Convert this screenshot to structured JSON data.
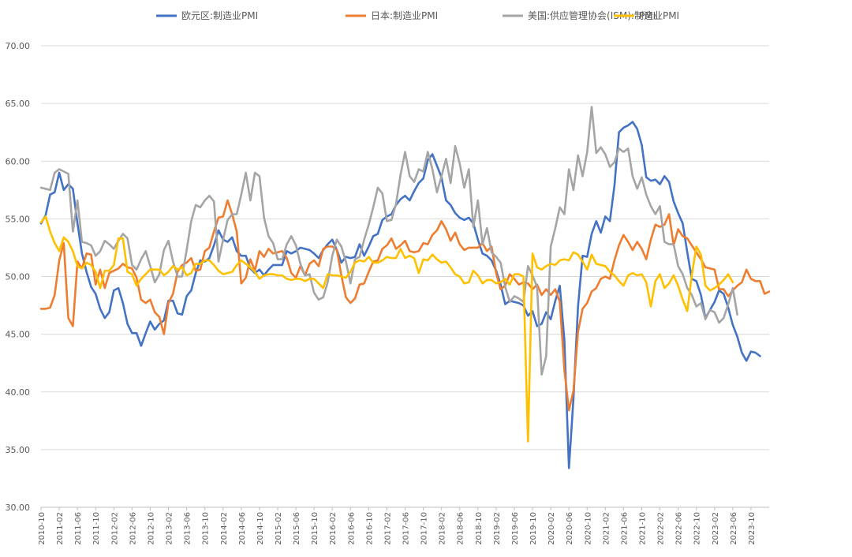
{
  "chart_data": {
    "type": "line",
    "title": "",
    "xlabel": "",
    "ylabel": "",
    "ylim": [
      30,
      70
    ],
    "yticks": [
      "30.00",
      "35.00",
      "40.00",
      "45.00",
      "50.00",
      "55.00",
      "60.00",
      "65.00",
      "70.00"
    ],
    "x_start": "2010-10",
    "x_end": "2023-10",
    "legend_position": "top",
    "grid": true,
    "xtick_labels": [
      "2010-10",
      "2011-02",
      "2011-06",
      "2011-10",
      "2012-02",
      "2012-06",
      "2012-10",
      "2013-02",
      "2013-06",
      "2013-10",
      "2014-02",
      "2014-06",
      "2014-10",
      "2015-02",
      "2015-06",
      "2015-10",
      "2016-02",
      "2016-06",
      "2016-10",
      "2017-02",
      "2017-06",
      "2017-10",
      "2018-02",
      "2018-06",
      "2018-10",
      "2019-02",
      "2019-06",
      "2019-10",
      "2020-02",
      "2020-06",
      "2020-10",
      "2021-02",
      "2021-06",
      "2021-10",
      "2022-02",
      "2022-06",
      "2022-10",
      "2023-02",
      "2023-06",
      "2023-10"
    ],
    "series": [
      {
        "name": "欧元区:制造业PMI",
        "color": "#4472c4",
        "values": [
          54.6,
          55.3,
          57.1,
          57.3,
          59.0,
          57.5,
          58.0,
          57.6,
          54.6,
          52.0,
          50.4,
          49.1,
          48.5,
          47.2,
          46.4,
          46.9,
          48.8,
          49.0,
          47.7,
          45.9,
          45.1,
          45.1,
          44.0,
          45.1,
          46.1,
          45.4,
          45.9,
          46.2,
          47.9,
          47.9,
          46.8,
          46.7,
          48.3,
          48.8,
          50.3,
          51.4,
          51.3,
          51.6,
          52.7,
          54.0,
          53.2,
          53.0,
          53.4,
          52.2,
          51.8,
          51.8,
          50.7,
          50.3,
          50.6,
          50.1,
          50.6,
          51.0,
          51.0,
          51.0,
          52.2,
          52.0,
          52.2,
          52.5,
          52.4,
          52.3,
          52.0,
          51.6,
          52.3,
          52.8,
          53.2,
          52.3,
          51.2,
          51.7,
          51.6,
          51.7,
          52.8,
          51.8,
          52.6,
          53.5,
          53.7,
          54.9,
          55.2,
          55.4,
          56.2,
          56.7,
          57.0,
          56.6,
          57.4,
          58.1,
          58.5,
          60.1,
          60.6,
          59.6,
          58.6,
          56.6,
          56.2,
          55.5,
          55.1,
          54.9,
          55.1,
          54.6,
          53.2,
          52.0,
          51.8,
          51.4,
          50.5,
          49.3,
          47.6,
          47.9,
          47.8,
          47.7,
          47.5,
          46.6,
          47.0,
          45.7,
          45.9,
          46.9,
          46.3,
          47.9,
          49.2,
          44.5,
          33.4,
          39.4,
          47.4,
          51.8,
          51.7,
          53.7,
          54.8,
          53.8,
          55.2,
          54.8,
          57.9,
          62.5,
          62.9,
          63.1,
          63.4,
          62.8,
          61.4,
          58.6,
          58.3,
          58.4,
          58.0,
          58.7,
          58.2,
          56.5,
          55.5,
          54.6,
          52.1,
          49.8,
          49.6,
          48.4,
          46.4,
          47.1,
          47.8,
          48.8,
          48.5,
          47.3,
          45.8,
          44.8,
          43.4,
          42.7,
          43.5,
          43.4,
          43.1
        ]
      },
      {
        "name": "日本:制造业PMI",
        "color": "#ed7d31",
        "values": [
          47.2,
          47.2,
          47.3,
          48.4,
          51.4,
          52.9,
          46.4,
          45.7,
          51.3,
          50.7,
          52.0,
          51.9,
          49.3,
          50.6,
          49.0,
          50.3,
          50.5,
          50.7,
          51.1,
          50.8,
          50.7,
          49.9,
          48.0,
          47.7,
          48.0,
          46.9,
          46.5,
          45.0,
          47.7,
          48.5,
          50.4,
          51.0,
          51.2,
          51.6,
          50.5,
          50.6,
          52.2,
          52.5,
          53.9,
          55.1,
          55.2,
          56.6,
          55.4,
          53.9,
          49.4,
          49.9,
          51.5,
          50.5,
          52.2,
          51.7,
          52.4,
          52.0,
          52.1,
          52.2,
          51.6,
          50.3,
          49.9,
          50.9,
          50.1,
          51.1,
          51.4,
          50.9,
          52.4,
          52.6,
          52.6,
          52.3,
          50.1,
          48.2,
          47.7,
          48.1,
          49.3,
          49.4,
          50.4,
          51.3,
          51.4,
          52.4,
          52.7,
          53.3,
          52.4,
          52.7,
          53.1,
          52.2,
          52.1,
          52.2,
          52.9,
          52.8,
          53.6,
          54.0,
          54.8,
          54.1,
          53.1,
          53.8,
          52.8,
          52.3,
          52.5,
          52.5,
          52.5,
          52.9,
          52.2,
          52.6,
          50.3,
          48.9,
          49.2,
          50.2,
          49.8,
          49.3,
          49.5,
          49.4,
          48.9,
          49.3,
          48.4,
          48.9,
          48.4,
          48.9,
          47.8,
          41.9,
          38.4,
          40.1,
          45.2,
          47.2,
          47.7,
          48.7,
          49.0,
          49.8,
          50.0,
          49.8,
          51.4,
          52.7,
          53.6,
          53.0,
          52.3,
          53.0,
          52.4,
          51.5,
          53.2,
          54.5,
          54.3,
          54.5,
          55.4,
          52.7,
          54.1,
          53.5,
          53.3,
          52.7,
          52.1,
          51.5,
          50.8,
          50.7,
          50.6,
          48.9,
          48.9,
          48.3,
          48.8,
          49.2,
          49.5,
          50.6,
          49.8,
          49.6,
          49.6,
          48.5,
          48.7
        ]
      },
      {
        "name": "美国:供应管理协会(ISM):制造业PMI",
        "color": "#a5a5a5",
        "values": [
          57.7,
          57.6,
          57.5,
          59.0,
          59.3,
          59.1,
          58.9,
          53.9,
          56.6,
          53.0,
          52.9,
          52.7,
          51.8,
          52.2,
          53.1,
          52.8,
          52.4,
          53.1,
          53.7,
          53.3,
          51.0,
          50.6,
          51.5,
          52.2,
          50.9,
          49.5,
          50.2,
          52.3,
          53.1,
          51.3,
          50.0,
          50.0,
          52.3,
          54.8,
          56.2,
          56.0,
          56.6,
          57.0,
          56.5,
          51.3,
          53.2,
          54.9,
          55.4,
          55.4,
          57.1,
          59.0,
          56.6,
          59.0,
          58.7,
          55.1,
          53.5,
          52.9,
          51.5,
          51.5,
          52.8,
          53.5,
          52.7,
          51.1,
          50.1,
          50.2,
          48.6,
          48.0,
          48.2,
          49.5,
          51.8,
          53.2,
          52.6,
          51.3,
          49.4,
          51.5,
          51.7,
          53.2,
          54.5,
          56.0,
          57.7,
          57.2,
          54.8,
          54.9,
          56.3,
          58.8,
          60.8,
          58.7,
          58.2,
          59.3,
          59.1,
          60.8,
          59.3,
          57.3,
          58.7,
          60.2,
          58.1,
          61.3,
          59.8,
          57.7,
          59.3,
          54.3,
          56.6,
          52.8,
          54.2,
          52.1,
          51.7,
          51.2,
          49.1,
          47.8,
          48.3,
          48.1,
          47.8,
          50.9,
          50.1,
          49.1,
          41.5,
          43.1,
          52.6,
          54.2,
          56.0,
          55.4,
          59.3,
          57.5,
          60.5,
          58.7,
          60.8,
          64.7,
          60.7,
          61.2,
          60.6,
          59.5,
          59.9,
          61.1,
          60.8,
          61.1,
          58.7,
          57.6,
          58.6,
          57.1,
          56.1,
          55.4,
          56.1,
          53.0,
          52.8,
          52.8,
          50.9,
          50.2,
          49.0,
          48.4,
          47.4,
          47.7,
          46.3,
          47.1,
          46.9,
          46.0,
          46.4,
          47.6,
          49.0,
          46.7
        ]
      },
      {
        "name": "PMI",
        "color": "#ffc000",
        "values": [
          54.7,
          55.2,
          53.9,
          52.9,
          52.2,
          53.4,
          53.0,
          52.2,
          50.9,
          50.7,
          51.2,
          51.0,
          50.4,
          49.0,
          50.5,
          50.5,
          51.0,
          53.3,
          53.3,
          50.4,
          50.2,
          49.2,
          49.8,
          50.2,
          50.6,
          50.6,
          50.6,
          50.1,
          50.4,
          50.9,
          50.6,
          50.8,
          50.1,
          50.3,
          51.1,
          51.1,
          51.4,
          51.4,
          51.0,
          50.5,
          50.2,
          50.3,
          50.4,
          51.0,
          51.4,
          51.1,
          50.8,
          50.4,
          49.8,
          50.1,
          50.2,
          50.2,
          50.1,
          50.1,
          49.8,
          49.7,
          49.8,
          49.8,
          49.6,
          49.8,
          49.8,
          49.4,
          49.0,
          50.2,
          50.1,
          50.1,
          50.0,
          49.9,
          50.4,
          51.2,
          51.4,
          51.3,
          51.7,
          51.2,
          51.2,
          51.4,
          51.7,
          51.6,
          51.6,
          52.4,
          51.6,
          51.8,
          51.6,
          50.3,
          51.5,
          51.4,
          51.9,
          51.5,
          51.2,
          51.3,
          50.8,
          50.2,
          50.0,
          49.4,
          49.5,
          50.5,
          50.1,
          49.4,
          49.7,
          49.7,
          49.4,
          49.5,
          49.8,
          49.3,
          50.2,
          50.2,
          50.0,
          35.7,
          52.0,
          50.8,
          50.6,
          50.9,
          51.1,
          51.0,
          51.4,
          51.5,
          51.4,
          52.1,
          51.9,
          51.3,
          50.6,
          51.9,
          51.1,
          51.0,
          50.9,
          50.4,
          50.1,
          49.6,
          49.2,
          50.1,
          50.3,
          50.1,
          50.2,
          49.5,
          47.4,
          49.6,
          50.2,
          49.0,
          49.4,
          50.1,
          49.2,
          48.0,
          47.0,
          50.1,
          52.6,
          51.9,
          49.2,
          48.8,
          49.0,
          49.3,
          49.7,
          50.2,
          49.5
        ]
      }
    ]
  }
}
